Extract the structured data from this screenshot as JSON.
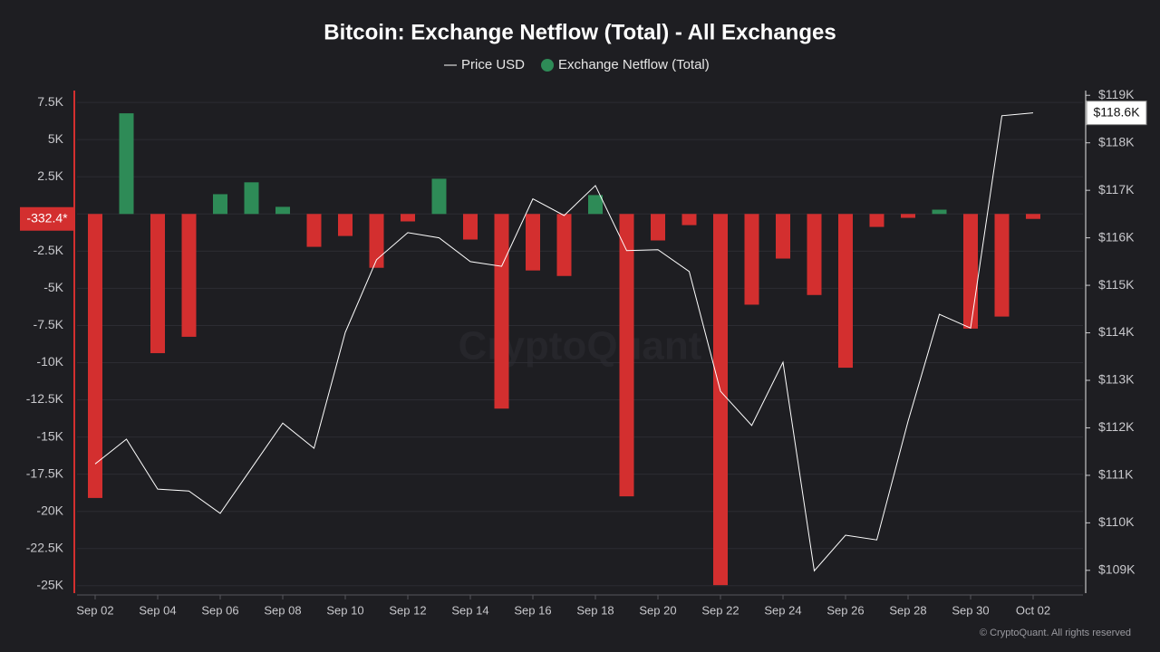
{
  "chart_data": {
    "type": "bar",
    "title": "Bitcoin: Exchange Netflow (Total) - All Exchanges",
    "categories": [
      "Sep 02",
      null,
      "Sep 04",
      null,
      "Sep 06",
      null,
      "Sep 08",
      null,
      "Sep 10",
      null,
      "Sep 12",
      null,
      "Sep 14",
      null,
      "Sep 16",
      null,
      "Sep 18",
      null,
      "Sep 20",
      null,
      "Sep 22",
      null,
      "Sep 24",
      null,
      "Sep 26",
      null,
      "Sep 28",
      null,
      "Sep 30",
      null,
      "Oct 02"
    ],
    "series": [
      {
        "name": "Price USD",
        "type": "line",
        "axis": "y2",
        "color": "#ffffff",
        "values": [
          111240,
          111760,
          110710,
          110670,
          110200,
          111150,
          112100,
          111570,
          114010,
          115540,
          116110,
          116000,
          115500,
          115400,
          116820,
          116470,
          117100,
          115730,
          115750,
          115290,
          112770,
          112050,
          113380,
          108990,
          109740,
          109640,
          112140,
          114390,
          114100,
          118570,
          118630
        ],
        "last_label": "$118.6K"
      },
      {
        "name": "Exchange Netflow (Total)",
        "type": "bar",
        "color": "#2e8b57",
        "negative_color": "#d32f2f",
        "values": [
          -19100,
          6770,
          -9360,
          -8260,
          1330,
          2130,
          480,
          -2210,
          -1480,
          -3620,
          -500,
          2370,
          -1720,
          -13090,
          -3800,
          -4170,
          1270,
          -18990,
          -1780,
          -750,
          -24960,
          -6100,
          -3000,
          -5450,
          -10340,
          -870,
          -260,
          290,
          -7710,
          -6900,
          -332.4
        ],
        "last_label": "-332.4*"
      }
    ],
    "ylim": [
      -25500,
      8300
    ],
    "yticks": [
      {
        "value": 7500,
        "label": "7.5K"
      },
      {
        "value": 5000,
        "label": "5K"
      },
      {
        "value": 2500,
        "label": "2.5K"
      },
      {
        "value": 0,
        "label": "0"
      },
      {
        "value": -2500,
        "label": "-2.5K"
      },
      {
        "value": -5000,
        "label": "-5K"
      },
      {
        "value": -7500,
        "label": "-7.5K"
      },
      {
        "value": -10000,
        "label": "-10K"
      },
      {
        "value": -12500,
        "label": "-12.5K"
      },
      {
        "value": -15000,
        "label": "-15K"
      },
      {
        "value": -17500,
        "label": "-17.5K"
      },
      {
        "value": -20000,
        "label": "-20K"
      },
      {
        "value": -22500,
        "label": "-22.5K"
      },
      {
        "value": -25000,
        "label": "-25K"
      }
    ],
    "y2lim": [
      108520,
      119100
    ],
    "y2ticks": [
      {
        "value": 119000,
        "label": "$119K"
      },
      {
        "value": 118000,
        "label": "$118K"
      },
      {
        "value": 117000,
        "label": "$117K"
      },
      {
        "value": 116000,
        "label": "$116K"
      },
      {
        "value": 115000,
        "label": "$115K"
      },
      {
        "value": 114000,
        "label": "$114K"
      },
      {
        "value": 113000,
        "label": "$113K"
      },
      {
        "value": 112000,
        "label": "$112K"
      },
      {
        "value": 111000,
        "label": "$111K"
      },
      {
        "value": 110000,
        "label": "$110K"
      },
      {
        "value": 109000,
        "label": "$109K"
      }
    ],
    "grid": true,
    "watermark": "CryptoQuant",
    "footer": "© CryptoQuant. All rights reserved"
  }
}
